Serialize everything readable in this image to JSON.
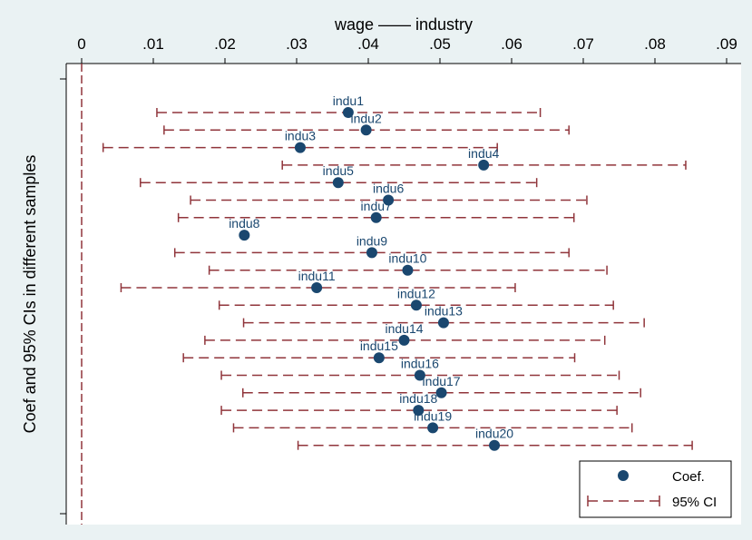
{
  "chart_data": {
    "type": "scatter",
    "title": "wage —— industry",
    "ylabel": "Coef and 95% CIs in different samples",
    "xlim": [
      0,
      0.09
    ],
    "x_ticks": [
      "0",
      ".01",
      ".02",
      ".03",
      ".04",
      ".05",
      ".06",
      ".07",
      ".08",
      ".09"
    ],
    "x_tick_values": [
      0,
      0.01,
      0.02,
      0.03,
      0.04,
      0.05,
      0.06,
      0.07,
      0.08,
      0.09
    ],
    "x_axis_position": "top",
    "reference_line": {
      "x": 0,
      "style": "dashed"
    },
    "grid": false,
    "legend": {
      "position": "bottom-right",
      "entries": [
        {
          "label": "Coef.",
          "marker": "circle"
        },
        {
          "label": "95% CI",
          "marker": "dashed-capped-line"
        }
      ]
    },
    "colors": {
      "coef": "#1a476f",
      "ci": "#90353b",
      "refline": "#90353b",
      "background": "#eaf2f3",
      "plot_bg": "#ffffff"
    },
    "series": [
      {
        "label": "indu1",
        "coef": 0.0372,
        "ci": [
          0.0105,
          0.064
        ]
      },
      {
        "label": "indu2",
        "coef": 0.0397,
        "ci": [
          0.0115,
          0.068
        ]
      },
      {
        "label": "indu3",
        "coef": 0.0305,
        "ci": [
          0.003,
          0.058
        ]
      },
      {
        "label": "indu4",
        "coef": 0.0561,
        "ci": [
          0.028,
          0.0843
        ]
      },
      {
        "label": "indu5",
        "coef": 0.0358,
        "ci": [
          0.0082,
          0.0635
        ]
      },
      {
        "label": "indu6",
        "coef": 0.0428,
        "ci": [
          0.0152,
          0.0705
        ]
      },
      {
        "label": "indu7",
        "coef": 0.0411,
        "ci": [
          0.0135,
          0.0687
        ]
      },
      {
        "label": "indu8",
        "coef": 0.0227,
        "ci": null
      },
      {
        "label": "indu9",
        "coef": 0.0405,
        "ci": [
          0.013,
          0.068
        ]
      },
      {
        "label": "indu10",
        "coef": 0.0455,
        "ci": [
          0.0178,
          0.0733
        ]
      },
      {
        "label": "indu11",
        "coef": 0.0328,
        "ci": [
          0.0055,
          0.0605
        ]
      },
      {
        "label": "indu12",
        "coef": 0.0467,
        "ci": [
          0.0192,
          0.0742
        ]
      },
      {
        "label": "indu13",
        "coef": 0.0505,
        "ci": [
          0.0226,
          0.0785
        ]
      },
      {
        "label": "indu14",
        "coef": 0.045,
        "ci": [
          0.0172,
          0.073
        ]
      },
      {
        "label": "indu15",
        "coef": 0.0415,
        "ci": [
          0.0142,
          0.0688
        ]
      },
      {
        "label": "indu16",
        "coef": 0.0472,
        "ci": [
          0.0195,
          0.075
        ]
      },
      {
        "label": "indu17",
        "coef": 0.0502,
        "ci": [
          0.0225,
          0.078
        ]
      },
      {
        "label": "indu18",
        "coef": 0.047,
        "ci": [
          0.0195,
          0.0747
        ]
      },
      {
        "label": "indu19",
        "coef": 0.049,
        "ci": [
          0.0212,
          0.0768
        ]
      },
      {
        "label": "indu20",
        "coef": 0.0576,
        "ci": [
          0.0302,
          0.0852
        ]
      }
    ]
  }
}
